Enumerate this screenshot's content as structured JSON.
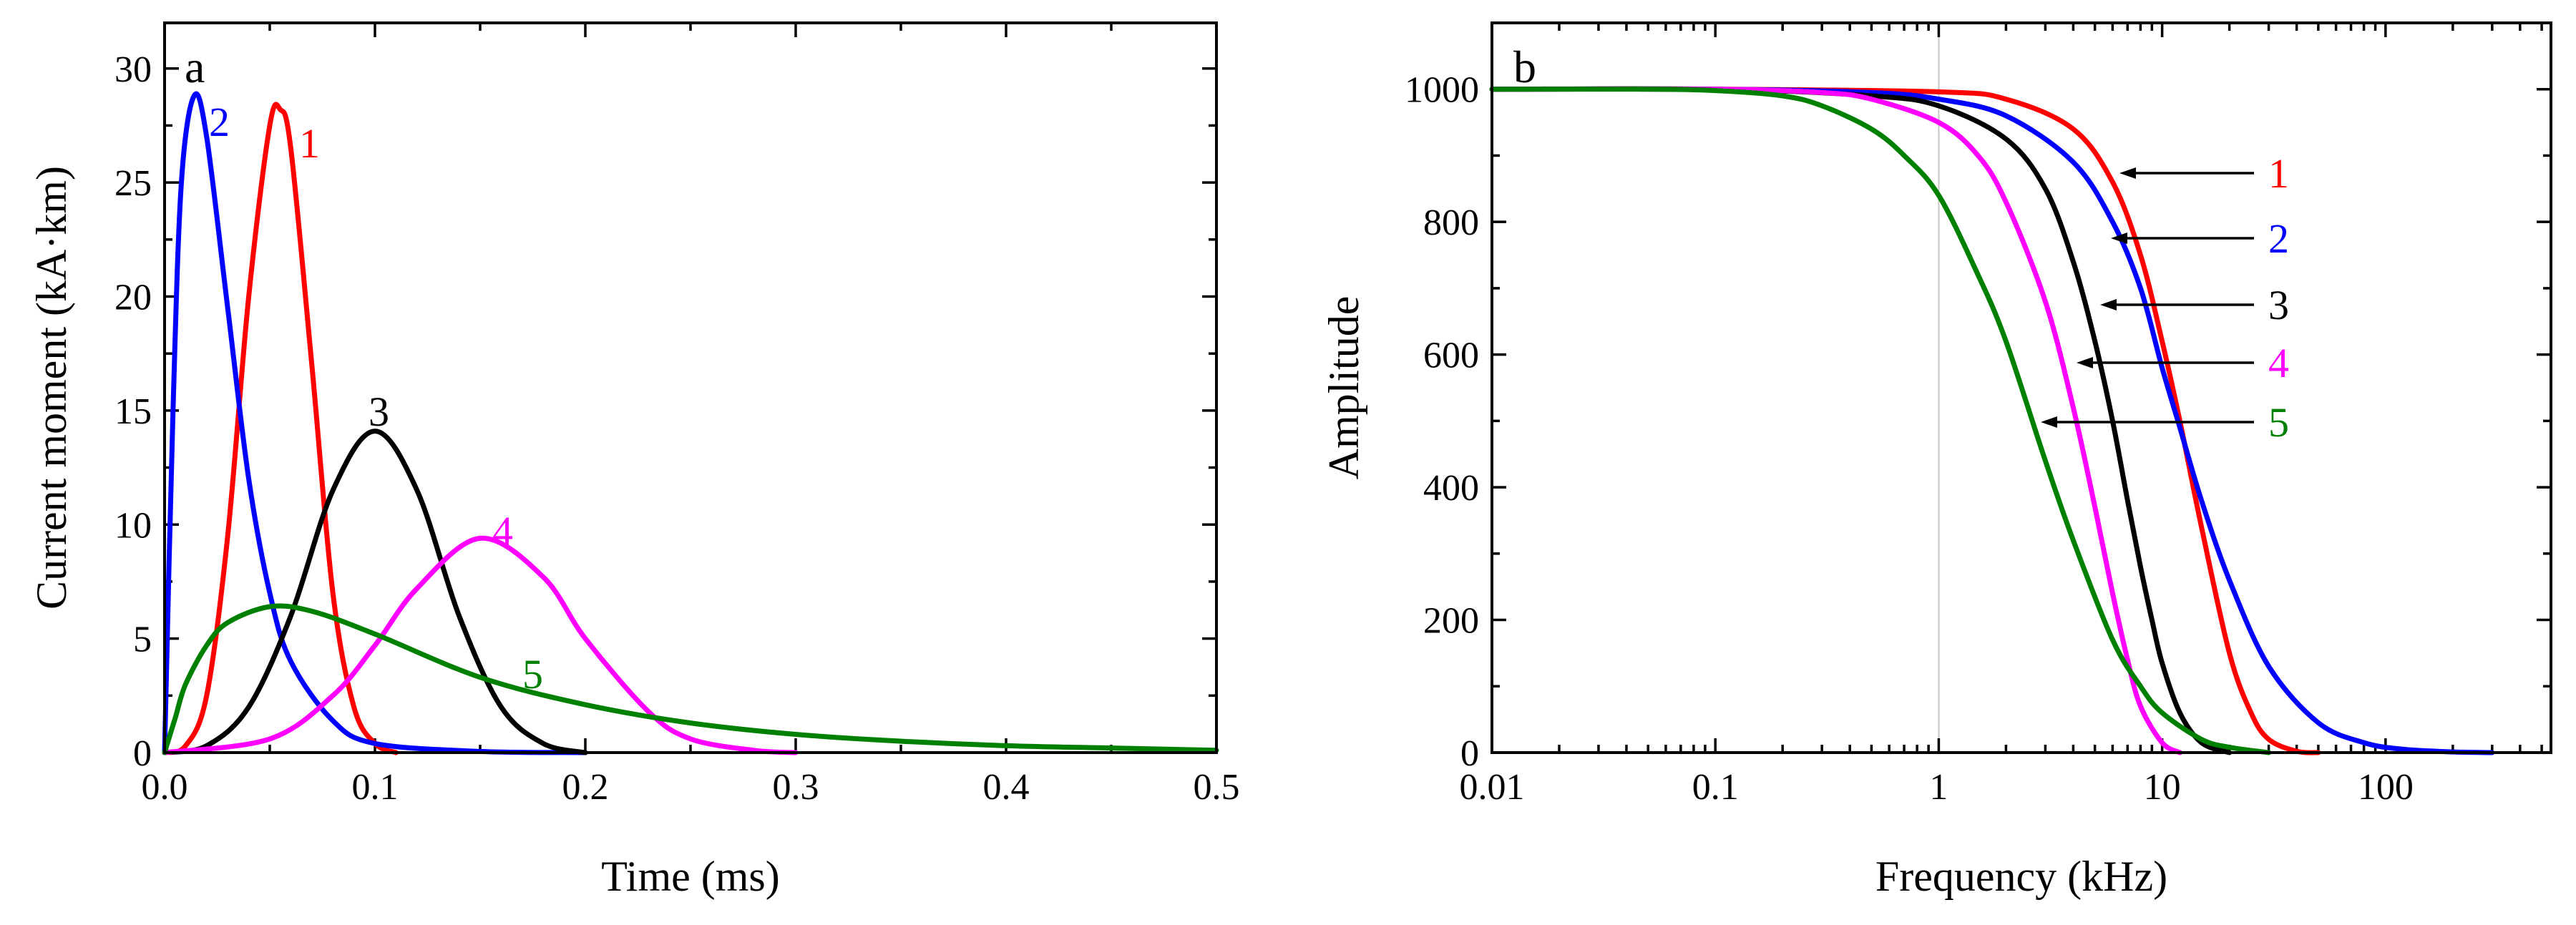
{
  "chart_data": [
    {
      "panel": "a",
      "type": "line",
      "xlabel": "Time (ms)",
      "ylabel": "Current moment (kA·km)",
      "xlim": [
        0.0,
        0.5
      ],
      "ylim": [
        0,
        32
      ],
      "xticks": [
        "0.0",
        "0.1",
        "0.2",
        "0.3",
        "0.4",
        "0.5"
      ],
      "yticks": [
        "0",
        "5",
        "10",
        "15",
        "20",
        "25",
        "30"
      ],
      "series": [
        {
          "name": "1",
          "color": "#ff0000",
          "x": [
            0,
            0.01,
            0.02,
            0.03,
            0.04,
            0.05,
            0.055,
            0.06,
            0.07,
            0.08,
            0.09,
            0.1,
            0.11
          ],
          "y": [
            0,
            0.3,
            2.5,
            9.5,
            20,
            27.5,
            28.2,
            26.5,
            17,
            7,
            2,
            0.4,
            0
          ]
        },
        {
          "name": "2",
          "color": "#0000ff",
          "x": [
            0,
            0.004,
            0.008,
            0.014,
            0.02,
            0.03,
            0.04,
            0.05,
            0.06,
            0.08,
            0.1,
            0.15,
            0.2
          ],
          "y": [
            0,
            15,
            25,
            28.8,
            27,
            19.5,
            12,
            7,
            4,
            1.4,
            0.4,
            0.05,
            0
          ]
        },
        {
          "name": "3",
          "color": "#000000",
          "x": [
            0,
            0.02,
            0.04,
            0.06,
            0.08,
            0.1,
            0.12,
            0.14,
            0.16,
            0.18,
            0.2
          ],
          "y": [
            0,
            0.3,
            2,
            6,
            11.5,
            14.1,
            11.5,
            6,
            2,
            0.4,
            0
          ]
        },
        {
          "name": "4",
          "color": "#ff00ff",
          "x": [
            0,
            0.05,
            0.08,
            0.1,
            0.12,
            0.15,
            0.18,
            0.2,
            0.23,
            0.25,
            0.28,
            0.3
          ],
          "y": [
            0,
            0.6,
            2.5,
            4.7,
            7.2,
            9.4,
            7.7,
            5,
            1.8,
            0.6,
            0.1,
            0
          ]
        },
        {
          "name": "5",
          "color": "#008000",
          "x": [
            0,
            0.005,
            0.01,
            0.02,
            0.03,
            0.05,
            0.07,
            0.1,
            0.15,
            0.2,
            0.25,
            0.3,
            0.35,
            0.4,
            0.45,
            0.5
          ],
          "y": [
            0,
            1.5,
            3,
            4.7,
            5.7,
            6.4,
            6.2,
            5.2,
            3.3,
            2.1,
            1.3,
            0.8,
            0.5,
            0.3,
            0.2,
            0.1
          ]
        }
      ],
      "labels": [
        "1",
        "2",
        "3",
        "4",
        "5"
      ]
    },
    {
      "panel": "b",
      "type": "line",
      "xscale": "log",
      "xlabel": "Frequency (kHz)",
      "ylabel": "Amplitude",
      "xlim": [
        0.01,
        550
      ],
      "ylim": [
        0,
        1100
      ],
      "xticks": [
        "0.01",
        "0.1",
        "1",
        "10",
        "100"
      ],
      "yticks": [
        "0",
        "200",
        "400",
        "600",
        "800",
        "1000"
      ],
      "vline_x": 1,
      "series": [
        {
          "name": "1",
          "color": "#ff0000",
          "x": [
            0.01,
            0.1,
            1,
            2,
            4,
            6,
            8,
            10,
            12,
            15,
            20,
            25,
            30,
            40,
            50
          ],
          "y": [
            1000,
            1000,
            996,
            985,
            940,
            860,
            750,
            620,
            500,
            340,
            150,
            60,
            20,
            2,
            0
          ]
        },
        {
          "name": "2",
          "color": "#0000ff",
          "x": [
            0.01,
            0.1,
            0.5,
            1,
            2,
            4,
            6,
            8,
            10,
            12,
            15,
            20,
            30,
            50,
            80,
            120,
            200,
            300
          ],
          "y": [
            1000,
            1000,
            995,
            985,
            960,
            890,
            800,
            700,
            580,
            490,
            380,
            260,
            130,
            45,
            15,
            5,
            1,
            0
          ]
        },
        {
          "name": "3",
          "color": "#000000",
          "x": [
            0.01,
            0.1,
            0.5,
            1,
            2,
            3,
            4,
            5,
            6,
            7,
            8,
            9,
            10,
            12,
            15,
            20
          ],
          "y": [
            1000,
            1000,
            990,
            975,
            925,
            850,
            740,
            620,
            500,
            380,
            280,
            200,
            135,
            60,
            15,
            0
          ]
        },
        {
          "name": "4",
          "color": "#ff00ff",
          "x": [
            0.01,
            0.1,
            0.3,
            0.5,
            1,
            1.5,
            2,
            3,
            4,
            5,
            6,
            7,
            8,
            10,
            12
          ],
          "y": [
            1000,
            1000,
            995,
            985,
            950,
            900,
            830,
            680,
            520,
            370,
            240,
            140,
            70,
            15,
            0
          ]
        },
        {
          "name": "5",
          "color": "#008000",
          "x": [
            0.01,
            0.05,
            0.1,
            0.2,
            0.3,
            0.5,
            0.7,
            1,
            1.5,
            2,
            3,
            4,
            6,
            8,
            10,
            15,
            20,
            30
          ],
          "y": [
            1000,
            1000,
            998,
            990,
            975,
            940,
            900,
            840,
            720,
            620,
            440,
            320,
            170,
            100,
            60,
            20,
            8,
            0
          ]
        }
      ],
      "labels": [
        "1",
        "2",
        "3",
        "4",
        "5"
      ]
    }
  ]
}
